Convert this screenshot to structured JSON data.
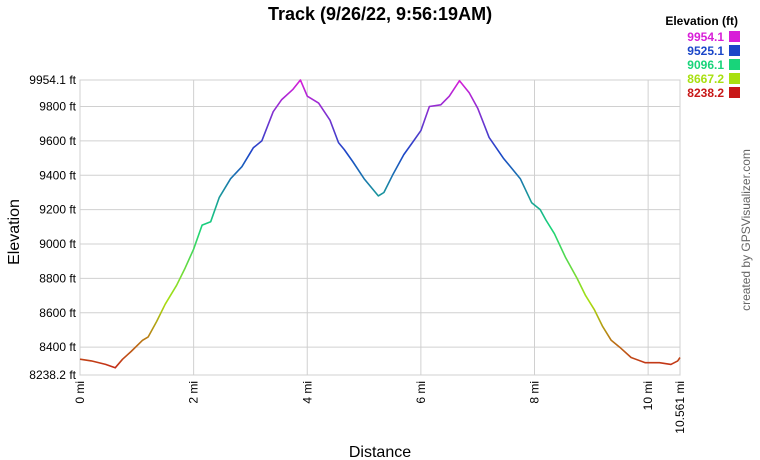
{
  "title": "Track (9/26/22, 9:56:19AM)",
  "credit": "created by GPSVisualizer.com",
  "legend": {
    "title": "Elevation (ft)",
    "entries": [
      {
        "label": "9954.1",
        "color": "#d81ed8"
      },
      {
        "label": "9525.1",
        "color": "#1a46c8"
      },
      {
        "label": "9096.1",
        "color": "#18d47a"
      },
      {
        "label": "8667.2",
        "color": "#a8e010"
      },
      {
        "label": "8238.2",
        "color": "#c81818"
      }
    ]
  },
  "chart_data": {
    "type": "line",
    "title": "Track (9/26/22, 9:56:19AM)",
    "xlabel": "Distance",
    "ylabel": "Elevation",
    "xlim": [
      0,
      10.561
    ],
    "ylim": [
      8238.2,
      9954.1
    ],
    "grid": true,
    "legend_position": "top-right",
    "x_ticks": [
      {
        "value": 0,
        "label": "0 mi"
      },
      {
        "value": 2,
        "label": "2 mi"
      },
      {
        "value": 4,
        "label": "4 mi"
      },
      {
        "value": 6,
        "label": "6 mi"
      },
      {
        "value": 8,
        "label": "8 mi"
      },
      {
        "value": 10,
        "label": "10 mi"
      },
      {
        "value": 10.561,
        "label": "10.561 mi"
      }
    ],
    "y_ticks": [
      {
        "value": 8238.2,
        "label": "8238.2 ft"
      },
      {
        "value": 8400,
        "label": "8400 ft"
      },
      {
        "value": 8600,
        "label": "8600 ft"
      },
      {
        "value": 8800,
        "label": "8800 ft"
      },
      {
        "value": 9000,
        "label": "9000 ft"
      },
      {
        "value": 9200,
        "label": "9200 ft"
      },
      {
        "value": 9400,
        "label": "9400 ft"
      },
      {
        "value": 9600,
        "label": "9600 ft"
      },
      {
        "value": 9800,
        "label": "9800 ft"
      },
      {
        "value": 9954.1,
        "label": "9954.1 ft"
      }
    ],
    "series": [
      {
        "x": [
          0,
          0.2,
          0.45,
          0.62,
          0.75,
          0.9,
          1.1,
          1.2,
          1.35,
          1.5,
          1.7,
          1.85,
          2.0,
          2.15,
          2.3,
          2.45,
          2.65,
          2.85,
          3.05,
          3.2,
          3.4,
          3.55,
          3.75,
          3.88,
          4.0,
          4.2,
          4.4,
          4.55,
          4.65,
          4.8,
          5.0,
          5.15,
          5.25,
          5.35,
          5.5,
          5.7,
          5.85,
          6.0,
          6.15,
          6.35,
          6.5,
          6.68,
          6.85,
          7.0,
          7.2,
          7.45,
          7.75,
          7.95,
          8.1,
          8.2,
          8.35,
          8.55,
          8.75,
          8.9,
          9.05,
          9.2,
          9.35,
          9.5,
          9.7,
          9.95,
          10.2,
          10.4,
          10.52,
          10.561
        ],
        "y": [
          8330,
          8320,
          8300,
          8280,
          8330,
          8375,
          8440,
          8460,
          8550,
          8650,
          8760,
          8860,
          8970,
          9110,
          9130,
          9270,
          9380,
          9450,
          9560,
          9600,
          9770,
          9840,
          9900,
          9954,
          9860,
          9820,
          9720,
          9590,
          9550,
          9480,
          9380,
          9320,
          9280,
          9300,
          9400,
          9520,
          9590,
          9660,
          9800,
          9810,
          9860,
          9950,
          9880,
          9790,
          9620,
          9500,
          9380,
          9240,
          9200,
          9140,
          9060,
          8920,
          8800,
          8700,
          8620,
          8520,
          8440,
          8400,
          8340,
          8310,
          8310,
          8300,
          8320,
          8340
        ]
      }
    ]
  }
}
